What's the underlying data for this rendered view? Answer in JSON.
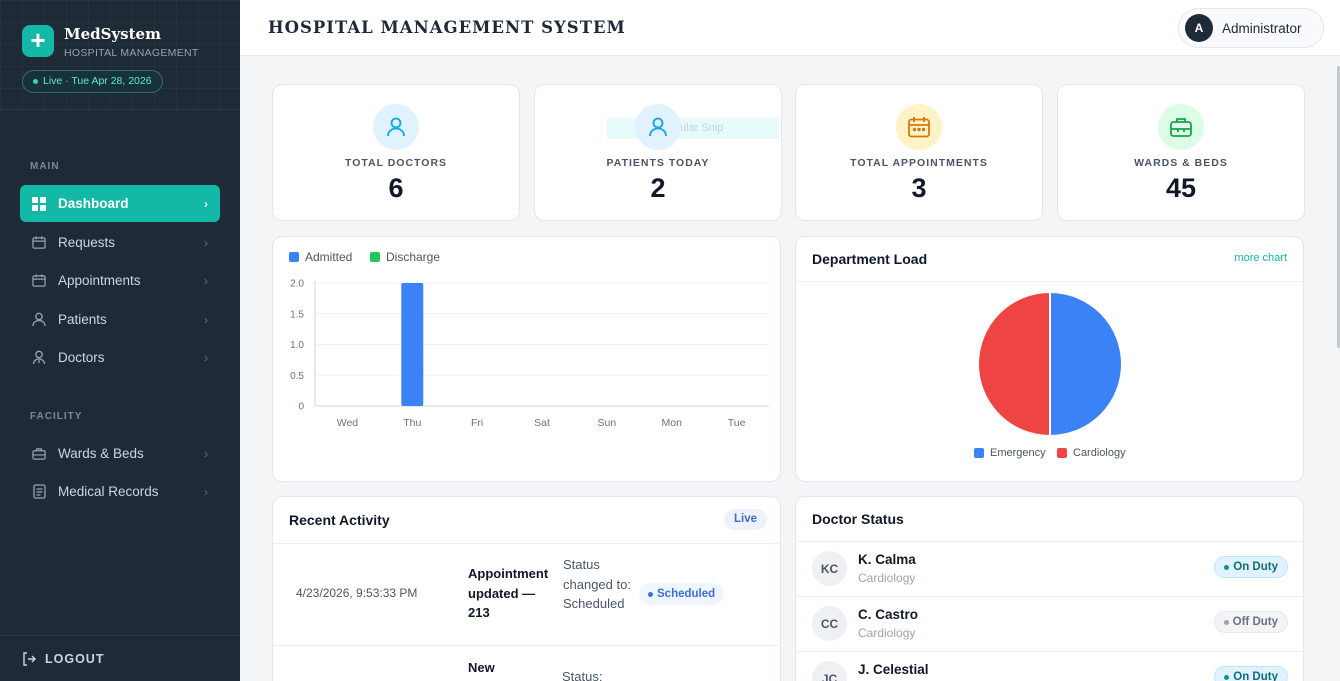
{
  "brand": {
    "name": "MedSystem",
    "subtitle": "HOSPITAL MANAGEMENT",
    "live_text": "Live · Tue Apr 28, 2026",
    "accent": "#14b8a6"
  },
  "sidebar": {
    "sections": [
      {
        "label": "MAIN"
      },
      {
        "label": "FACILITY"
      }
    ],
    "items": [
      {
        "label": "Dashboard",
        "icon": "dashboard-icon",
        "active": true
      },
      {
        "label": "Requests",
        "icon": "calendar-icon"
      },
      {
        "label": "Appointments",
        "icon": "calendar-icon"
      },
      {
        "label": "Patients",
        "icon": "user-icon"
      },
      {
        "label": "Doctors",
        "icon": "doctor-icon"
      },
      {
        "label": "Wards & Beds",
        "icon": "bed-icon"
      },
      {
        "label": "Medical Records",
        "icon": "document-icon"
      }
    ],
    "logout_label": "LOGOUT"
  },
  "header": {
    "title": "HOSPITAL MANAGEMENT SYSTEM",
    "user": {
      "initial": "A",
      "name": "Administrator"
    }
  },
  "stats": [
    {
      "label": "TOTAL DOCTORS",
      "value": "6",
      "icon": "user-icon",
      "color": "#0ea5e9"
    },
    {
      "label": "PATIENTS TODAY",
      "value": "2",
      "icon": "user-icon",
      "color": "#0ea5e9"
    },
    {
      "label": "TOTAL APPOINTMENTS",
      "value": "3",
      "icon": "calendar-icon",
      "color": "#d97706"
    },
    {
      "label": "WARDS & BEDS",
      "value": "45",
      "icon": "bed-icon",
      "color": "#16a34a"
    }
  ],
  "overlay": {
    "snip_text": "Rectangular Snip"
  },
  "chart_data": [
    {
      "type": "bar",
      "categories": [
        "Wed",
        "Thu",
        "Fri",
        "Sat",
        "Sun",
        "Mon",
        "Tue"
      ],
      "series": [
        {
          "name": "Admitted",
          "values": [
            0,
            2,
            0,
            0,
            0,
            0,
            0
          ],
          "color": "#3b82f6"
        },
        {
          "name": "Discharge",
          "values": [
            0,
            0,
            0,
            0,
            0,
            0,
            0
          ],
          "color": "#22c55e"
        }
      ],
      "yticks": [
        "0",
        "0.5",
        "1.0",
        "1.5",
        "2.0"
      ],
      "ylim": [
        0,
        2
      ],
      "grid": true,
      "legend": "top-left"
    },
    {
      "type": "pie",
      "title": "Department Load",
      "labels": [
        "Emergency",
        "Cardiology"
      ],
      "values": [
        1,
        1
      ],
      "colors": [
        "#3b82f6",
        "#ef4444"
      ],
      "legend": "bottom",
      "link": "more chart"
    }
  ],
  "activity": {
    "title": "Recent Activity",
    "badge": "Live",
    "rows": [
      {
        "time": "4/23/2026, 9:53:33 PM",
        "title": "Appointment updated — 213",
        "detail": "Status changed to: Scheduled",
        "status": "Scheduled"
      },
      {
        "title": "New",
        "detail": "Status:"
      }
    ]
  },
  "doctor_status": {
    "title": "Doctor Status",
    "doctors": [
      {
        "initials": "KC",
        "name": "K. Calma",
        "dept": "Cardiology",
        "status": "On Duty"
      },
      {
        "initials": "CC",
        "name": "C. Castro",
        "dept": "Cardiology",
        "status": "Off Duty"
      },
      {
        "initials": "JC",
        "name": "J. Celestial",
        "dept": "",
        "status": "On Duty"
      }
    ]
  }
}
